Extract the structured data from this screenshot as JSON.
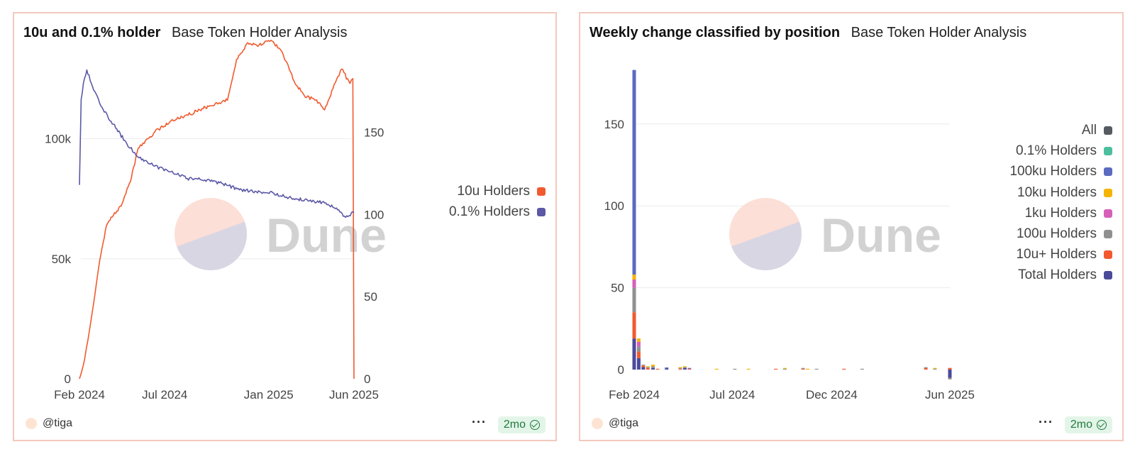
{
  "charts": [
    {
      "title": "10u and 0.1% holder",
      "subtitle": "Base Token Holder Analysis",
      "author": "@tiga",
      "age_badge": "2mo",
      "more_label": "···",
      "watermark": "Dune"
    },
    {
      "title": "Weekly change classified by position",
      "subtitle": "Base Token Holder Analysis",
      "author": "@tiga",
      "age_badge": "2mo",
      "more_label": "···",
      "watermark": "Dune"
    }
  ],
  "chart_data": [
    {
      "type": "line",
      "x_ticks": [
        "Feb 2024",
        "Jul 2024",
        "Jan 2025",
        "Jun 2025"
      ],
      "x_tick_dates": [
        "2024-02-01",
        "2024-07-01",
        "2025-01-01",
        "2025-06-01"
      ],
      "x_range": [
        "2024-02-01",
        "2025-06-01"
      ],
      "y_left_ticks": [
        "0",
        "50k",
        "100k"
      ],
      "y_left_range": [
        0,
        130000
      ],
      "y_right_ticks": [
        "0",
        "50",
        "100",
        "150"
      ],
      "y_right_range": [
        0,
        190
      ],
      "grid": true,
      "legend_position": "right",
      "series": [
        {
          "name": "10u Holders",
          "color": "#f15a2f",
          "axis": "left",
          "points": [
            [
              "2024-02-01",
              0
            ],
            [
              "2024-02-10",
              8000
            ],
            [
              "2024-02-20",
              22000
            ],
            [
              "2024-03-01",
              38000
            ],
            [
              "2024-03-10",
              52000
            ],
            [
              "2024-03-20",
              64000
            ],
            [
              "2024-04-01",
              68000
            ],
            [
              "2024-04-15",
              72000
            ],
            [
              "2024-05-01",
              82000
            ],
            [
              "2024-05-15",
              96000
            ],
            [
              "2024-06-01",
              100000
            ],
            [
              "2024-06-20",
              104000
            ],
            [
              "2024-07-10",
              107000
            ],
            [
              "2024-08-01",
              109000
            ],
            [
              "2024-09-01",
              112000
            ],
            [
              "2024-10-01",
              115000
            ],
            [
              "2024-10-20",
              116000
            ],
            [
              "2024-11-05",
              133000
            ],
            [
              "2024-11-25",
              140000
            ],
            [
              "2024-12-15",
              139000
            ],
            [
              "2025-01-05",
              141000
            ],
            [
              "2025-01-25",
              136000
            ],
            [
              "2025-02-15",
              124000
            ],
            [
              "2025-03-05",
              118000
            ],
            [
              "2025-03-25",
              116000
            ],
            [
              "2025-04-10",
              112000
            ],
            [
              "2025-04-25",
              121000
            ],
            [
              "2025-05-10",
              129000
            ],
            [
              "2025-05-25",
              123000
            ],
            [
              "2025-05-30",
              125000
            ],
            [
              "2025-06-01",
              0
            ]
          ]
        },
        {
          "name": "0.1% Holders",
          "color": "#5b58a6",
          "axis": "right",
          "points": [
            [
              "2024-02-01",
              118
            ],
            [
              "2024-02-04",
              170
            ],
            [
              "2024-02-08",
              180
            ],
            [
              "2024-02-14",
              188
            ],
            [
              "2024-02-24",
              178
            ],
            [
              "2024-03-10",
              166
            ],
            [
              "2024-04-01",
              155
            ],
            [
              "2024-04-25",
              143
            ],
            [
              "2024-05-15",
              135
            ],
            [
              "2024-06-10",
              130
            ],
            [
              "2024-07-10",
              126
            ],
            [
              "2024-08-10",
              122
            ],
            [
              "2024-09-10",
              121
            ],
            [
              "2024-10-10",
              119
            ],
            [
              "2024-11-10",
              115
            ],
            [
              "2024-12-10",
              114
            ],
            [
              "2025-01-10",
              113
            ],
            [
              "2025-02-10",
              110
            ],
            [
              "2025-03-10",
              109
            ],
            [
              "2025-04-10",
              107
            ],
            [
              "2025-05-01",
              104
            ],
            [
              "2025-05-15",
              99
            ],
            [
              "2025-06-01",
              101
            ]
          ]
        }
      ]
    },
    {
      "type": "bar",
      "stacked": true,
      "x_ticks": [
        "Feb 2024",
        "Jul 2024",
        "Dec 2024",
        "Jun 2025"
      ],
      "x_tick_dates": [
        "2024-02-01",
        "2024-07-01",
        "2024-12-01",
        "2025-06-01"
      ],
      "x_range": [
        "2024-02-01",
        "2025-06-01"
      ],
      "y_ticks": [
        "0",
        "50",
        "100",
        "150"
      ],
      "y_range": [
        -5,
        185
      ],
      "grid": true,
      "legend_position": "right",
      "series": [
        {
          "name": "All",
          "color": "#555b61"
        },
        {
          "name": "0.1% Holders",
          "color": "#4cbf9e"
        },
        {
          "name": "100ku Holders",
          "color": "#5b6bc0"
        },
        {
          "name": "10ku Holders",
          "color": "#f4b400"
        },
        {
          "name": "1ku Holders",
          "color": "#d65fb8"
        },
        {
          "name": "100u Holders",
          "color": "#909090"
        },
        {
          "name": "10u+ Holders",
          "color": "#f15a2f"
        },
        {
          "name": "Total Holders",
          "color": "#4b4a9a"
        }
      ],
      "bars": [
        {
          "date": "2024-02-01",
          "values": {
            "Total Holders": 19,
            "10u+ Holders": 16,
            "100u Holders": 15,
            "1ku Holders": 5,
            "10ku Holders": 3,
            "100ku Holders": 125
          }
        },
        {
          "date": "2024-02-08",
          "values": {
            "Total Holders": 7,
            "10u+ Holders": 4,
            "100u Holders": 3,
            "1ku Holders": 3,
            "10ku Holders": 2
          }
        },
        {
          "date": "2024-02-15",
          "values": {
            "Total Holders": 1.5,
            "10u+ Holders": 1,
            "100u Holders": 0.5
          }
        },
        {
          "date": "2024-02-22",
          "values": {
            "10u+ Holders": 1,
            "100u Holders": 0.5,
            "10ku Holders": 0.5
          }
        },
        {
          "date": "2024-03-01",
          "values": {
            "Total Holders": 1,
            "100u Holders": 1,
            "10ku Holders": 1
          }
        },
        {
          "date": "2024-03-08",
          "values": {
            "10u+ Holders": 0.5
          }
        },
        {
          "date": "2024-03-22",
          "values": {
            "Total Holders": 0.8,
            "100ku Holders": 0.5
          }
        },
        {
          "date": "2024-04-12",
          "values": {
            "10u+ Holders": 0.5,
            "100u Holders": 0.5,
            "10ku Holders": 0.5
          }
        },
        {
          "date": "2024-04-19",
          "values": {
            "Total Holders": 1,
            "100u Holders": 0.5,
            "10ku Holders": 0.5
          }
        },
        {
          "date": "2024-04-26",
          "values": {
            "10u+ Holders": 0.5,
            "100ku Holders": 0.5
          }
        },
        {
          "date": "2024-06-07",
          "values": {
            "10ku Holders": 0.5
          }
        },
        {
          "date": "2024-07-05",
          "values": {
            "100u Holders": 0.5
          }
        },
        {
          "date": "2024-07-26",
          "values": {
            "10ku Holders": 0.5
          }
        },
        {
          "date": "2024-09-06",
          "values": {
            "10u+ Holders": 0.5
          }
        },
        {
          "date": "2024-09-20",
          "values": {
            "100u Holders": 0.5,
            "10ku Holders": 0.5
          }
        },
        {
          "date": "2024-10-18",
          "values": {
            "10u+ Holders": 0.5,
            "100u Holders": 0.5
          }
        },
        {
          "date": "2024-10-25",
          "values": {
            "10ku Holders": 0.5
          }
        },
        {
          "date": "2024-11-08",
          "values": {
            "100u Holders": 0.5
          }
        },
        {
          "date": "2024-12-20",
          "values": {
            "10u+ Holders": 0.5
          }
        },
        {
          "date": "2025-01-17",
          "values": {
            "100u Holders": 0.5
          }
        },
        {
          "date": "2025-04-25",
          "values": {
            "10u+ Holders": 1,
            "100u Holders": 0.5
          }
        },
        {
          "date": "2025-05-09",
          "values": {
            "10ku Holders": 0.5,
            "100u Holders": 0.5
          }
        },
        {
          "date": "2025-06-01",
          "values": {
            "Total Holders": -5,
            "100u Holders": -1,
            "10u+ Holders": 1
          }
        }
      ]
    }
  ]
}
